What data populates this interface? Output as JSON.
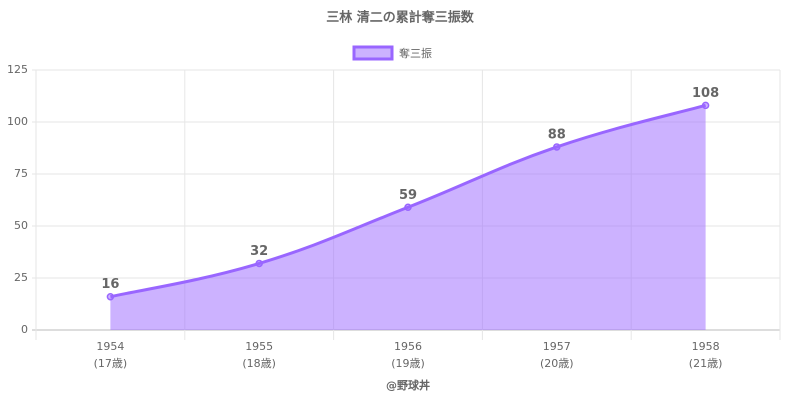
{
  "chart_data": {
    "type": "area",
    "title": "三林 清二の累計奪三振数",
    "categories": [
      "1954",
      "1955",
      "1956",
      "1957",
      "1958"
    ],
    "category_sublabels": [
      "(17歳)",
      "(18歳)",
      "(19歳)",
      "(20歳)",
      "(21歳)"
    ],
    "x_label": "@野球丼",
    "series": [
      {
        "name": "奪三振",
        "color": "#9966ff",
        "values": [
          16,
          32,
          59,
          88,
          108
        ]
      }
    ],
    "ylim": [
      0,
      125
    ],
    "yticks": [
      0,
      25,
      50,
      75,
      100,
      125
    ],
    "grid": true,
    "legend": "top"
  }
}
